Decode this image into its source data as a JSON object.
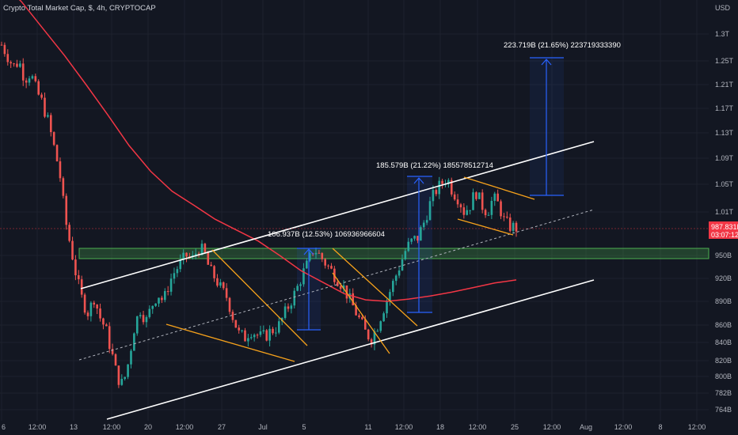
{
  "header": {
    "title": "Crypto Total Market Cap, $, 4h, CRYPTOCAP",
    "currency": "USD"
  },
  "price_badge": {
    "value": "987.831B",
    "countdown": "03:07:12",
    "color": "#f23645"
  },
  "colors": {
    "background": "#131722",
    "grid": "#1e222d",
    "candle_up": "#26a69a",
    "candle_down": "#ef5350",
    "ma": "#f23645",
    "channel": "#ffffff",
    "wedge": "#f7a21b",
    "measure": "#2962ff",
    "zone": "#4caf50"
  },
  "chart_data": {
    "type": "candlestick",
    "timeframe": "4h",
    "y_unit": "USD (market cap)",
    "y_ticks": [
      "1.3T",
      "1.25T",
      "1.21T",
      "1.17T",
      "1.13T",
      "1.09T",
      "1.05T",
      "1.01T",
      "950B",
      "920B",
      "890B",
      "860B",
      "840B",
      "820B",
      "800B",
      "782B",
      "764B"
    ],
    "x_ticks": [
      "6",
      "12:00",
      "13",
      "12:00",
      "20",
      "12:00",
      "27",
      "Jul",
      "5",
      "11",
      "12:00",
      "18",
      "12:00",
      "25",
      "12:00",
      "Aug",
      "12:00",
      "8",
      "12:00"
    ],
    "annotations": [
      {
        "text": "106.937B (12.53%) 106936966604"
      },
      {
        "text": "185.579B (21.22%) 185578512714"
      },
      {
        "text": "223.719B (21.65%) 223719333390"
      }
    ],
    "price_path": [
      1280000000000.0,
      1260000000000.0,
      1240000000000.0,
      1250000000000.0,
      1220000000000.0,
      1230000000000.0,
      1200000000000.0,
      1180000000000.0,
      1150000000000.0,
      1110000000000.0,
      1070000000000.0,
      1000000000000.0,
      960000000000.0,
      920000000000.0,
      890000000000.0,
      875000000000.0,
      895000000000.0,
      870000000000.0,
      855000000000.0,
      830000000000.0,
      800000000000.0,
      790000000000.0,
      820000000000.0,
      860000000000.0,
      880000000000.0,
      865000000000.0,
      885000000000.0,
      900000000000.0,
      890000000000.0,
      915000000000.0,
      930000000000.0,
      940000000000.0,
      950000000000.0,
      945000000000.0,
      960000000000.0,
      955000000000.0,
      930000000000.0,
      920000000000.0,
      905000000000.0,
      895000000000.0,
      870000000000.0,
      850000000000.0,
      845000000000.0,
      855000000000.0,
      850000000000.0,
      845000000000.0,
      850000000000.0,
      855000000000.0,
      860000000000.0,
      875000000000.0,
      890000000000.0,
      905000000000.0,
      925000000000.0,
      940000000000.0,
      960000000000.0,
      950000000000.0,
      940000000000.0,
      930000000000.0,
      920000000000.0,
      910000000000.0,
      895000000000.0,
      880000000000.0,
      865000000000.0,
      850000000000.0,
      845000000000.0,
      860000000000.0,
      880000000000.0,
      900000000000.0,
      920000000000.0,
      940000000000.0,
      960000000000.0,
      970000000000.0,
      975000000000.0,
      995000000000.0,
      1020000000000.0,
      1040000000000.0,
      1050000000000.0,
      1060000000000.0,
      1040000000000.0,
      1030000000000.0,
      1010000000000.0,
      1020000000000.0,
      1040000000000.0,
      1020000000000.0,
      1010000000000.0,
      1030000000000.0,
      1020000000000.0,
      995000000000.0,
      990000000000.0,
      988000000000.0
    ],
    "ma_path": [
      1400000000000.0,
      1360000000000.0,
      1310000000000.0,
      1260000000000.0,
      1210000000000.0,
      1160000000000.0,
      1110000000000.0,
      1070000000000.0,
      1040000000000.0,
      1020000000000.0,
      1000000000000.0,
      985000000000.0,
      970000000000.0,
      950000000000.0,
      930000000000.0,
      915000000000.0,
      900000000000.0,
      892000000000.0,
      890000000000.0,
      893000000000.0,
      897000000000.0,
      902000000000.0,
      908000000000.0,
      914000000000.0,
      918000000000.0
    ]
  }
}
